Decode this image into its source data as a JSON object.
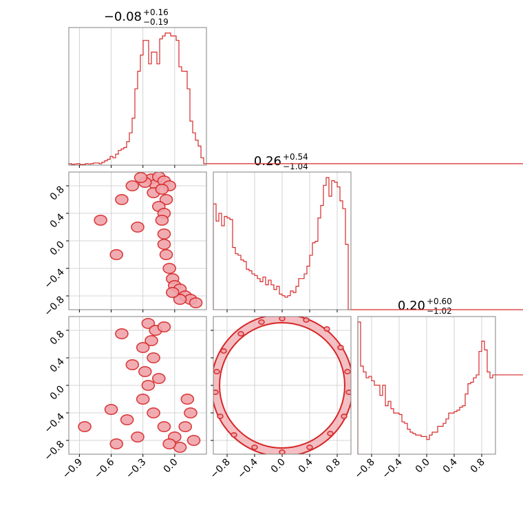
{
  "colors": {
    "accent": "#d62728",
    "fill": "#f0a4aa",
    "grid": "#c8c8c8",
    "frame": "#808080"
  },
  "chart_data": {
    "type": "corner",
    "parameters": 3,
    "grid": true,
    "titles": [
      {
        "value": "−0.08",
        "plus": "+0.16",
        "minus": "−0.19"
      },
      {
        "value": "0.26",
        "plus": "+0.54",
        "minus": "−1.04"
      },
      {
        "value": "0.20",
        "plus": "+0.60",
        "minus": "−1.02"
      }
    ],
    "x_ticks": [
      {
        "values": [
          -0.9,
          -0.6,
          -0.3,
          0.0
        ],
        "labels": [
          "−0.9",
          "−0.6",
          "−0.3",
          "0.0"
        ]
      },
      {
        "values": [
          -0.8,
          -0.4,
          0.0,
          0.4,
          0.8
        ],
        "labels": [
          "−0.8",
          "−0.4",
          "0.0",
          "0.4",
          "0.8"
        ]
      },
      {
        "values": [
          -0.8,
          -0.4,
          0.0,
          0.4,
          0.8
        ],
        "labels": [
          "−0.8",
          "−0.4",
          "0.0",
          "0.4",
          "0.8"
        ]
      }
    ],
    "y_ticks": [
      {
        "values": [],
        "labels": []
      },
      {
        "values": [
          -0.8,
          -0.4,
          0.0,
          0.4,
          0.8
        ],
        "labels": [
          "−0.8",
          "−0.4",
          "0.0",
          "0.4",
          "0.8"
        ]
      },
      {
        "values": [
          -0.8,
          -0.4,
          0.0,
          0.4,
          0.8
        ],
        "labels": [
          "−0.8",
          "−0.4",
          "0.0",
          "0.4",
          "0.8"
        ]
      }
    ],
    "ranges": [
      [
        -1.0,
        0.3
      ],
      [
        -1.0,
        1.0
      ],
      [
        -1.0,
        1.0
      ]
    ],
    "histograms": [
      {
        "param": 0,
        "bin_edges": [
          -1.0,
          -0.974,
          -0.948,
          -0.922,
          -0.896,
          -0.87,
          -0.844,
          -0.818,
          -0.792,
          -0.766,
          -0.74,
          -0.714,
          -0.688,
          -0.662,
          -0.636,
          -0.61,
          -0.584,
          -0.558,
          -0.532,
          -0.506,
          -0.48,
          -0.454,
          -0.428,
          -0.402,
          -0.376,
          -0.35,
          -0.324,
          -0.298,
          -0.272,
          -0.246,
          -0.22,
          -0.194,
          -0.168,
          -0.142,
          -0.116,
          -0.09,
          -0.064,
          -0.038,
          -0.012,
          0.014,
          0.04,
          0.066,
          0.092,
          0.118,
          0.144,
          0.17,
          0.196,
          0.222,
          0.248,
          0.274,
          0.3
        ],
        "counts": [
          0.01,
          0.005,
          0.008,
          0.01,
          0.005,
          0.005,
          0.01,
          0.008,
          0.01,
          0.015,
          0.015,
          0.01,
          0.02,
          0.03,
          0.04,
          0.06,
          0.05,
          0.075,
          0.1,
          0.11,
          0.12,
          0.16,
          0.22,
          0.32,
          0.52,
          0.64,
          0.75,
          0.85,
          0.85,
          0.69,
          0.77,
          0.77,
          0.69,
          0.86,
          0.88,
          0.9,
          0.9,
          0.88,
          0.88,
          0.85,
          0.67,
          0.64,
          0.64,
          0.52,
          0.3,
          0.22,
          0.17,
          0.13,
          0.05,
          0.01
        ]
      },
      {
        "param": 1,
        "bin_edges": [
          -1.0,
          -0.96,
          -0.92,
          -0.88,
          -0.84,
          -0.8,
          -0.76,
          -0.72,
          -0.68,
          -0.64,
          -0.6,
          -0.56,
          -0.52,
          -0.48,
          -0.44,
          -0.4,
          -0.36,
          -0.32,
          -0.28,
          -0.24,
          -0.2,
          -0.16,
          -0.12,
          -0.08,
          -0.04,
          0.0,
          0.04,
          0.08,
          0.12,
          0.16,
          0.2,
          0.24,
          0.28,
          0.32,
          0.36,
          0.4,
          0.44,
          0.48,
          0.52,
          0.56,
          0.6,
          0.64,
          0.68,
          0.72,
          0.76,
          0.8,
          0.84,
          0.88,
          0.92,
          0.96,
          1.0
        ],
        "counts": [
          0.68,
          0.57,
          0.62,
          0.54,
          0.6,
          0.59,
          0.58,
          0.4,
          0.36,
          0.35,
          0.32,
          0.31,
          0.26,
          0.25,
          0.23,
          0.22,
          0.2,
          0.18,
          0.21,
          0.16,
          0.19,
          0.16,
          0.13,
          0.15,
          0.1,
          0.09,
          0.08,
          0.09,
          0.12,
          0.11,
          0.15,
          0.2,
          0.2,
          0.23,
          0.28,
          0.35,
          0.43,
          0.44,
          0.59,
          0.67,
          0.8,
          0.85,
          0.73,
          0.83,
          0.82,
          0.79,
          0.7,
          0.65,
          0.42,
          0.0
        ]
      },
      {
        "param": 2,
        "bin_edges": [
          -1.0,
          -0.96,
          -0.92,
          -0.88,
          -0.84,
          -0.8,
          -0.76,
          -0.72,
          -0.68,
          -0.64,
          -0.6,
          -0.56,
          -0.52,
          -0.48,
          -0.44,
          -0.4,
          -0.36,
          -0.32,
          -0.28,
          -0.24,
          -0.2,
          -0.16,
          -0.12,
          -0.08,
          -0.04,
          0.0,
          0.04,
          0.08,
          0.12,
          0.16,
          0.2,
          0.24,
          0.28,
          0.32,
          0.36,
          0.4,
          0.44,
          0.48,
          0.52,
          0.56,
          0.6,
          0.64,
          0.68,
          0.72,
          0.76,
          0.8,
          0.84,
          0.88,
          0.92,
          0.96,
          1.0
        ],
        "counts": [
          0.9,
          0.6,
          0.56,
          0.52,
          0.53,
          0.5,
          0.47,
          0.47,
          0.4,
          0.47,
          0.33,
          0.36,
          0.31,
          0.28,
          0.28,
          0.27,
          0.22,
          0.21,
          0.17,
          0.15,
          0.14,
          0.13,
          0.13,
          0.12,
          0.12,
          0.1,
          0.13,
          0.15,
          0.15,
          0.19,
          0.19,
          0.21,
          0.24,
          0.28,
          0.28,
          0.29,
          0.3,
          0.32,
          0.33,
          0.41,
          0.48,
          0.49,
          0.52,
          0.54,
          0.7,
          0.77,
          0.71,
          0.56,
          0.52,
          0.54
        ]
      }
    ],
    "scatter_2d": [
      {
        "x_param": 0,
        "y_param": 1,
        "description_points": [
          [
            -0.22,
            0.9
          ],
          [
            -0.18,
            0.82
          ],
          [
            -0.15,
            0.93
          ],
          [
            -0.1,
            0.87
          ],
          [
            -0.05,
            0.8
          ],
          [
            -0.2,
            0.7
          ],
          [
            -0.12,
            0.75
          ],
          [
            -0.08,
            0.6
          ],
          [
            -0.15,
            0.5
          ],
          [
            -0.1,
            0.4
          ],
          [
            -0.12,
            0.3
          ],
          [
            -0.1,
            0.1
          ],
          [
            -0.1,
            -0.05
          ],
          [
            -0.08,
            -0.2
          ],
          [
            -0.05,
            -0.4
          ],
          [
            -0.02,
            -0.55
          ],
          [
            0.0,
            -0.65
          ],
          [
            0.05,
            -0.7
          ],
          [
            0.1,
            -0.8
          ],
          [
            0.15,
            -0.85
          ],
          [
            0.2,
            -0.9
          ],
          [
            0.05,
            -0.85
          ],
          [
            -0.02,
            -0.75
          ],
          [
            -0.28,
            0.85
          ],
          [
            -0.32,
            0.92
          ],
          [
            -0.4,
            0.8
          ],
          [
            -0.5,
            0.6
          ],
          [
            -0.7,
            0.3
          ],
          [
            -0.55,
            -0.2
          ],
          [
            -0.35,
            0.2
          ]
        ]
      },
      {
        "x_param": 0,
        "y_param": 2,
        "description_points": [
          [
            -0.25,
            0.9
          ],
          [
            -0.18,
            0.8
          ],
          [
            -0.1,
            0.85
          ],
          [
            -0.22,
            0.65
          ],
          [
            -0.3,
            0.55
          ],
          [
            -0.2,
            0.4
          ],
          [
            -0.28,
            0.2
          ],
          [
            -0.25,
            0.0
          ],
          [
            -0.3,
            -0.2
          ],
          [
            -0.2,
            -0.4
          ],
          [
            -0.1,
            -0.6
          ],
          [
            0.0,
            -0.75
          ],
          [
            0.1,
            -0.6
          ],
          [
            0.15,
            -0.4
          ],
          [
            0.12,
            -0.2
          ],
          [
            0.05,
            -0.9
          ],
          [
            -0.05,
            -0.85
          ],
          [
            -0.45,
            -0.5
          ],
          [
            -0.6,
            -0.35
          ],
          [
            -0.85,
            -0.6
          ],
          [
            -0.5,
            0.75
          ],
          [
            -0.4,
            0.3
          ],
          [
            -0.15,
            0.1
          ],
          [
            0.18,
            -0.8
          ],
          [
            -0.35,
            -0.75
          ],
          [
            -0.55,
            -0.85
          ]
        ]
      },
      {
        "x_param": 1,
        "y_param": 2,
        "shape": "ring",
        "description_points": [
          [
            0.0,
            0.97
          ],
          [
            0.35,
            0.95
          ],
          [
            0.65,
            0.82
          ],
          [
            0.85,
            0.55
          ],
          [
            0.95,
            0.2
          ],
          [
            0.97,
            -0.1
          ],
          [
            0.9,
            -0.45
          ],
          [
            0.7,
            -0.7
          ],
          [
            0.4,
            -0.9
          ],
          [
            0.0,
            -0.97
          ],
          [
            -0.4,
            -0.9
          ],
          [
            -0.7,
            -0.72
          ],
          [
            -0.9,
            -0.45
          ],
          [
            -0.97,
            -0.1
          ],
          [
            -0.95,
            0.2
          ],
          [
            -0.85,
            0.5
          ],
          [
            -0.6,
            0.75
          ],
          [
            -0.3,
            0.92
          ]
        ]
      }
    ]
  }
}
